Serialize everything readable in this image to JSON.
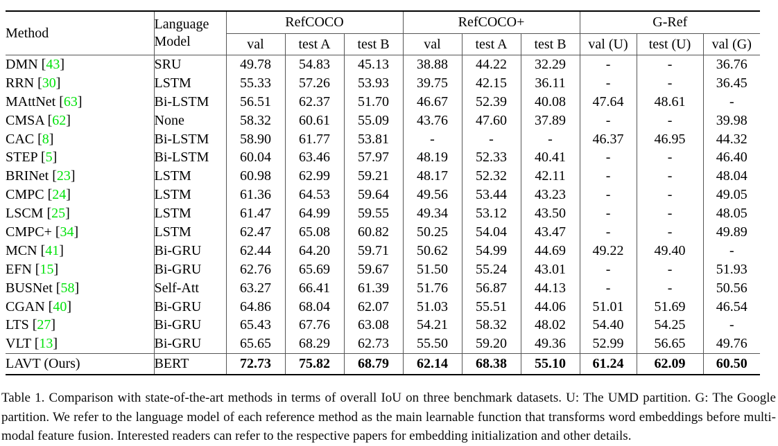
{
  "colors": {
    "citation_green": "#00e20a"
  },
  "table": {
    "header": {
      "method": "Method",
      "language_line1": "Language",
      "language_line2": "Model",
      "groups": [
        "RefCOCO",
        "RefCOCO+",
        "G-Ref"
      ],
      "subcolumns": [
        "val",
        "test A",
        "test B",
        "val",
        "test A",
        "test B",
        "val (U)",
        "test (U)",
        "val (G)"
      ]
    },
    "rows": [
      {
        "method": "DMN",
        "cite": "43",
        "language_model": "SRU",
        "bold": false,
        "values": [
          "49.78",
          "54.83",
          "45.13",
          "38.88",
          "44.22",
          "32.29",
          "-",
          "-",
          "36.76"
        ]
      },
      {
        "method": "RRN",
        "cite": "30",
        "language_model": "LSTM",
        "bold": false,
        "values": [
          "55.33",
          "57.26",
          "53.93",
          "39.75",
          "42.15",
          "36.11",
          "-",
          "-",
          "36.45"
        ]
      },
      {
        "method": "MAttNet",
        "cite": "63",
        "language_model": "Bi-LSTM",
        "bold": false,
        "values": [
          "56.51",
          "62.37",
          "51.70",
          "46.67",
          "52.39",
          "40.08",
          "47.64",
          "48.61",
          "-"
        ]
      },
      {
        "method": "CMSA",
        "cite": "62",
        "language_model": "None",
        "bold": false,
        "values": [
          "58.32",
          "60.61",
          "55.09",
          "43.76",
          "47.60",
          "37.89",
          "-",
          "-",
          "39.98"
        ]
      },
      {
        "method": "CAC",
        "cite": "8",
        "language_model": "Bi-LSTM",
        "bold": false,
        "values": [
          "58.90",
          "61.77",
          "53.81",
          "-",
          "-",
          "-",
          "46.37",
          "46.95",
          "44.32"
        ]
      },
      {
        "method": "STEP",
        "cite": "5",
        "language_model": "Bi-LSTM",
        "bold": false,
        "values": [
          "60.04",
          "63.46",
          "57.97",
          "48.19",
          "52.33",
          "40.41",
          "-",
          "-",
          "46.40"
        ]
      },
      {
        "method": "BRINet",
        "cite": "23",
        "language_model": "LSTM",
        "bold": false,
        "values": [
          "60.98",
          "62.99",
          "59.21",
          "48.17",
          "52.32",
          "42.11",
          "-",
          "-",
          "48.04"
        ]
      },
      {
        "method": "CMPC",
        "cite": "24",
        "language_model": "LSTM",
        "bold": false,
        "values": [
          "61.36",
          "64.53",
          "59.64",
          "49.56",
          "53.44",
          "43.23",
          "-",
          "-",
          "49.05"
        ]
      },
      {
        "method": "LSCM",
        "cite": "25",
        "language_model": "LSTM",
        "bold": false,
        "values": [
          "61.47",
          "64.99",
          "59.55",
          "49.34",
          "53.12",
          "43.50",
          "-",
          "-",
          "48.05"
        ]
      },
      {
        "method": "CMPC+",
        "cite": "34",
        "language_model": "LSTM",
        "bold": false,
        "values": [
          "62.47",
          "65.08",
          "60.82",
          "50.25",
          "54.04",
          "43.47",
          "-",
          "-",
          "49.89"
        ]
      },
      {
        "method": "MCN",
        "cite": "41",
        "language_model": "Bi-GRU",
        "bold": false,
        "values": [
          "62.44",
          "64.20",
          "59.71",
          "50.62",
          "54.99",
          "44.69",
          "49.22",
          "49.40",
          "-"
        ]
      },
      {
        "method": "EFN",
        "cite": "15",
        "language_model": "Bi-GRU",
        "bold": false,
        "values": [
          "62.76",
          "65.69",
          "59.67",
          "51.50",
          "55.24",
          "43.01",
          "-",
          "-",
          "51.93"
        ]
      },
      {
        "method": "BUSNet",
        "cite": "58",
        "language_model": "Self-Att",
        "bold": false,
        "values": [
          "63.27",
          "66.41",
          "61.39",
          "51.76",
          "56.87",
          "44.13",
          "-",
          "-",
          "50.56"
        ]
      },
      {
        "method": "CGAN",
        "cite": "40",
        "language_model": "Bi-GRU",
        "bold": false,
        "values": [
          "64.86",
          "68.04",
          "62.07",
          "51.03",
          "55.51",
          "44.06",
          "51.01",
          "51.69",
          "46.54"
        ]
      },
      {
        "method": "LTS",
        "cite": "27",
        "language_model": "Bi-GRU",
        "bold": false,
        "values": [
          "65.43",
          "67.76",
          "63.08",
          "54.21",
          "58.32",
          "48.02",
          "54.40",
          "54.25",
          "-"
        ]
      },
      {
        "method": "VLT",
        "cite": "13",
        "language_model": "Bi-GRU",
        "bold": false,
        "values": [
          "65.65",
          "68.29",
          "62.73",
          "55.50",
          "59.20",
          "49.36",
          "52.99",
          "56.65",
          "49.76"
        ]
      },
      {
        "method": "LAVT (Ours)",
        "cite": "",
        "language_model": "BERT",
        "bold": true,
        "values": [
          "72.73",
          "75.82",
          "68.79",
          "62.14",
          "68.38",
          "55.10",
          "61.24",
          "62.09",
          "60.50"
        ]
      }
    ]
  },
  "caption": "Table 1.  Comparison with state-of-the-art methods in terms of overall IoU on three benchmark datasets.  U: The UMD partition.  G: The Google partition.  We refer to the language model of each reference method as the main learnable function that transforms word embeddings before multi-modal feature fusion.  Interested readers can refer to the respective papers for embedding initialization and other details."
}
